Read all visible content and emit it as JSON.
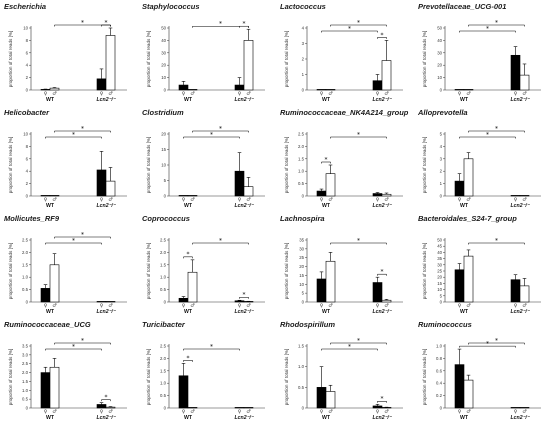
{
  "figure": {
    "sex_symbols": {
      "female": "♀",
      "male": "♂"
    },
    "colors": {
      "female_bar": "#000000",
      "male_bar": "#ffffff",
      "axis": "#333333"
    }
  },
  "chart_data": [
    {
      "type": "bar",
      "title": "Escherichia",
      "ylabel": "proportion of total reads [%]",
      "categories": [
        "WT",
        "Lcn2⁻/⁻"
      ],
      "yticks": [
        "0",
        "2",
        "4",
        "6",
        "8",
        "10"
      ],
      "ylim": [
        0,
        10
      ],
      "series": [
        {
          "name": "♀",
          "values": [
            0.1,
            1.8
          ],
          "errors": [
            0.05,
            1.6
          ]
        },
        {
          "name": "♂",
          "values": [
            0.3,
            8.8
          ],
          "errors": [
            0.1,
            1.6
          ]
        }
      ],
      "significance": [
        {
          "from": [
            0,
            1
          ],
          "to": [
            1,
            1
          ],
          "label": "*"
        },
        {
          "from": [
            1,
            0
          ],
          "to": [
            1,
            1
          ],
          "label": "*"
        }
      ]
    },
    {
      "type": "bar",
      "title": "Staphylococcus",
      "ylabel": "proportion of total reads [%]",
      "categories": [
        "WT",
        "Lcn2⁻/⁻"
      ],
      "yticks": [
        "0",
        "10",
        "20",
        "30",
        "40",
        "50"
      ],
      "ylim": [
        0,
        50
      ],
      "series": [
        {
          "name": "♀",
          "values": [
            4,
            4
          ],
          "errors": [
            3,
            6
          ]
        },
        {
          "name": "♂",
          "values": [
            0,
            40
          ],
          "errors": [
            0,
            9
          ]
        }
      ],
      "significance": [
        {
          "from": [
            0,
            1
          ],
          "to": [
            1,
            1
          ],
          "label": "*"
        },
        {
          "from": [
            1,
            0
          ],
          "to": [
            1,
            1
          ],
          "label": "*"
        }
      ]
    },
    {
      "type": "bar",
      "title": "Lactococcus",
      "ylabel": "proportion of total reads [%]",
      "categories": [
        "WT",
        "Lcn2⁻/⁻"
      ],
      "yticks": [
        "0",
        "1",
        "2",
        "3",
        "4"
      ],
      "ylim": [
        0,
        4
      ],
      "series": [
        {
          "name": "♀",
          "values": [
            0,
            0.6
          ],
          "errors": [
            0,
            0.4
          ]
        },
        {
          "name": "♂",
          "values": [
            0,
            1.9
          ],
          "errors": [
            0,
            1.3
          ]
        }
      ],
      "significance": [
        {
          "from": [
            0,
            0
          ],
          "to": [
            1,
            0
          ],
          "label": "*"
        },
        {
          "from": [
            0,
            1
          ],
          "to": [
            1,
            1
          ],
          "label": "*"
        },
        {
          "from": [
            1,
            0
          ],
          "to": [
            1,
            1
          ],
          "label": "*"
        }
      ]
    },
    {
      "type": "bar",
      "title": "Prevotellaceae_UCG-001",
      "ylabel": "proportion of total reads [%]",
      "categories": [
        "WT",
        "Lcn2⁻/⁻"
      ],
      "yticks": [
        "0",
        "10",
        "20",
        "30",
        "40",
        "50"
      ],
      "ylim": [
        0,
        50
      ],
      "series": [
        {
          "name": "♀",
          "values": [
            0,
            28
          ],
          "errors": [
            0,
            7
          ]
        },
        {
          "name": "♂",
          "values": [
            0,
            12
          ],
          "errors": [
            0,
            9
          ]
        }
      ],
      "significance": [
        {
          "from": [
            0,
            0
          ],
          "to": [
            1,
            0
          ],
          "label": "*"
        },
        {
          "from": [
            0,
            1
          ],
          "to": [
            1,
            1
          ],
          "label": "*"
        }
      ]
    },
    {
      "type": "bar",
      "title": "Helicobacter",
      "ylabel": "proportion of total reads [%]",
      "categories": [
        "WT",
        "Lcn2⁻/⁻"
      ],
      "yticks": [
        "0",
        "2",
        "4",
        "6",
        "8",
        "10"
      ],
      "ylim": [
        0,
        10
      ],
      "series": [
        {
          "name": "♀",
          "values": [
            0,
            4.2
          ],
          "errors": [
            0,
            3.0
          ]
        },
        {
          "name": "♂",
          "values": [
            0,
            2.4
          ],
          "errors": [
            0,
            2.2
          ]
        }
      ],
      "significance": [
        {
          "from": [
            0,
            0
          ],
          "to": [
            1,
            0
          ],
          "label": "*"
        },
        {
          "from": [
            0,
            1
          ],
          "to": [
            1,
            1
          ],
          "label": "*"
        }
      ]
    },
    {
      "type": "bar",
      "title": "Clostridium",
      "ylabel": "proportion of total reads [%]",
      "categories": [
        "WT",
        "Lcn2⁻/⁻"
      ],
      "yticks": [
        "0",
        "5",
        "10",
        "15",
        "20"
      ],
      "ylim": [
        0,
        20
      ],
      "series": [
        {
          "name": "♀",
          "values": [
            0,
            8
          ],
          "errors": [
            0,
            6
          ]
        },
        {
          "name": "♂",
          "values": [
            0,
            3
          ],
          "errors": [
            0,
            3
          ]
        }
      ],
      "significance": [
        {
          "from": [
            0,
            0
          ],
          "to": [
            1,
            0
          ],
          "label": "*"
        },
        {
          "from": [
            0,
            1
          ],
          "to": [
            1,
            1
          ],
          "label": "*"
        }
      ]
    },
    {
      "type": "bar",
      "title": "Ruminococcaceae_NK4A214_group",
      "ylabel": "proportion of total reads [%]",
      "categories": [
        "WT",
        "Lcn2⁻/⁻"
      ],
      "yticks": [
        "0",
        "0.5",
        "1.0",
        "1.5",
        "2.0",
        "2.5"
      ],
      "ylim": [
        0,
        2.5
      ],
      "series": [
        {
          "name": "♀",
          "values": [
            0.2,
            0.1
          ],
          "errors": [
            0.08,
            0.04
          ]
        },
        {
          "name": "♂",
          "values": [
            0.9,
            0.07
          ],
          "errors": [
            0.35,
            0.05
          ]
        }
      ],
      "significance": [
        {
          "from": [
            0,
            0
          ],
          "to": [
            0,
            1
          ],
          "label": "*"
        },
        {
          "from": [
            0,
            1
          ],
          "to": [
            1,
            1
          ],
          "label": "*"
        }
      ]
    },
    {
      "type": "bar",
      "title": "Alloprevotella",
      "ylabel": "proportion of total reads [%]",
      "categories": [
        "WT",
        "Lcn2⁻/⁻"
      ],
      "yticks": [
        "0",
        "1",
        "2",
        "3",
        "4",
        "5"
      ],
      "ylim": [
        0,
        5
      ],
      "series": [
        {
          "name": "♀",
          "values": [
            1.2,
            0
          ],
          "errors": [
            0.6,
            0
          ]
        },
        {
          "name": "♂",
          "values": [
            3.0,
            0
          ],
          "errors": [
            0.5,
            0
          ]
        }
      ],
      "significance": [
        {
          "from": [
            0,
            0
          ],
          "to": [
            1,
            0
          ],
          "label": "*"
        },
        {
          "from": [
            0,
            1
          ],
          "to": [
            1,
            1
          ],
          "label": "*"
        }
      ]
    },
    {
      "type": "bar",
      "title": "Mollicutes_RF9",
      "ylabel": "proportion of total reads [%]",
      "categories": [
        "WT",
        "Lcn2⁻/⁻"
      ],
      "yticks": [
        "0",
        "0.5",
        "1.0",
        "1.5",
        "2.0",
        "2.5"
      ],
      "ylim": [
        0,
        2.5
      ],
      "series": [
        {
          "name": "♀",
          "values": [
            0.55,
            0
          ],
          "errors": [
            0.15,
            0
          ]
        },
        {
          "name": "♂",
          "values": [
            1.5,
            0
          ],
          "errors": [
            0.45,
            0
          ]
        }
      ],
      "significance": [
        {
          "from": [
            0,
            0
          ],
          "to": [
            1,
            0
          ],
          "label": "*"
        },
        {
          "from": [
            0,
            1
          ],
          "to": [
            1,
            1
          ],
          "label": "*"
        }
      ]
    },
    {
      "type": "bar",
      "title": "Coprococcus",
      "ylabel": "proportion of total reads [%]",
      "categories": [
        "WT",
        "Lcn2⁻/⁻"
      ],
      "yticks": [
        "0",
        "0.5",
        "1.0",
        "1.5",
        "2.0",
        "2.5"
      ],
      "ylim": [
        0,
        2.5
      ],
      "series": [
        {
          "name": "♀",
          "values": [
            0.15,
            0.05
          ],
          "errors": [
            0.07,
            0.02
          ]
        },
        {
          "name": "♂",
          "values": [
            1.2,
            0.02
          ],
          "errors": [
            0.5,
            0.01
          ]
        }
      ],
      "significance": [
        {
          "from": [
            0,
            0
          ],
          "to": [
            0,
            1
          ],
          "label": "*"
        },
        {
          "from": [
            0,
            1
          ],
          "to": [
            1,
            1
          ],
          "label": "*"
        },
        {
          "from": [
            1,
            0
          ],
          "to": [
            1,
            1
          ],
          "label": "*"
        }
      ]
    },
    {
      "type": "bar",
      "title": "Lachnospira",
      "ylabel": "proportion of total reads [%]",
      "categories": [
        "WT",
        "Lcn2⁻/⁻"
      ],
      "yticks": [
        "0",
        "5",
        "10",
        "15",
        "20",
        "25",
        "30",
        "35"
      ],
      "ylim": [
        0,
        35
      ],
      "series": [
        {
          "name": "♀",
          "values": [
            13,
            11
          ],
          "errors": [
            4,
            3
          ]
        },
        {
          "name": "♂",
          "values": [
            23,
            1
          ],
          "errors": [
            5,
            0.5
          ]
        }
      ],
      "significance": [
        {
          "from": [
            0,
            1
          ],
          "to": [
            1,
            1
          ],
          "label": "*"
        },
        {
          "from": [
            1,
            0
          ],
          "to": [
            1,
            1
          ],
          "label": "*"
        }
      ]
    },
    {
      "type": "bar",
      "title": "Bacteroidales_S24-7_group",
      "ylabel": "proportion of total reads [%]",
      "categories": [
        "WT",
        "Lcn2⁻/⁻"
      ],
      "yticks": [
        "0",
        "5",
        "10",
        "15",
        "20",
        "25",
        "30",
        "35",
        "40",
        "45",
        "50"
      ],
      "ylim": [
        0,
        50
      ],
      "series": [
        {
          "name": "♀",
          "values": [
            26,
            18
          ],
          "errors": [
            5,
            4
          ]
        },
        {
          "name": "♂",
          "values": [
            37,
            13
          ],
          "errors": [
            5,
            6
          ]
        }
      ],
      "significance": [
        {
          "from": [
            0,
            1
          ],
          "to": [
            1,
            1
          ],
          "label": "*"
        }
      ]
    },
    {
      "type": "bar",
      "title": "Ruminococcaceae_UCG",
      "ylabel": "proportion of total reads [%]",
      "categories": [
        "WT",
        "Lcn2⁻/⁻"
      ],
      "yticks": [
        "0",
        "0.5",
        "1.0",
        "1.5",
        "2.0",
        "2.5",
        "3.0",
        "3.5"
      ],
      "ylim": [
        0,
        3.5
      ],
      "series": [
        {
          "name": "♀",
          "values": [
            2.0,
            0.2
          ],
          "errors": [
            0.3,
            0.1
          ]
        },
        {
          "name": "♂",
          "values": [
            2.3,
            0.05
          ],
          "errors": [
            0.5,
            0.03
          ]
        }
      ],
      "significance": [
        {
          "from": [
            0,
            0
          ],
          "to": [
            1,
            0
          ],
          "label": "*"
        },
        {
          "from": [
            0,
            1
          ],
          "to": [
            1,
            1
          ],
          "label": "*"
        },
        {
          "from": [
            1,
            0
          ],
          "to": [
            1,
            1
          ],
          "label": "*"
        }
      ]
    },
    {
      "type": "bar",
      "title": "Turicibacter",
      "ylabel": "proportion of total reads [%]",
      "categories": [
        "WT",
        "Lcn2⁻/⁻"
      ],
      "yticks": [
        "0",
        "0.5",
        "1.0",
        "1.5",
        "2.0",
        "2.5"
      ],
      "ylim": [
        0,
        2.5
      ],
      "series": [
        {
          "name": "♀",
          "values": [
            1.3,
            0
          ],
          "errors": [
            0.5,
            0
          ]
        },
        {
          "name": "♂",
          "values": [
            0,
            0
          ],
          "errors": [
            0,
            0
          ]
        }
      ],
      "significance": [
        {
          "from": [
            0,
            0
          ],
          "to": [
            0,
            1
          ],
          "label": "*"
        },
        {
          "from": [
            0,
            0
          ],
          "to": [
            1,
            0
          ],
          "label": "*"
        }
      ]
    },
    {
      "type": "bar",
      "title": "Rhodospirillum",
      "ylabel": "proportion of total reads [%]",
      "categories": [
        "WT",
        "Lcn2⁻/⁻"
      ],
      "yticks": [
        "0",
        "0.5",
        "1.0",
        "1.5"
      ],
      "ylim": [
        0,
        1.5
      ],
      "series": [
        {
          "name": "♀",
          "values": [
            0.5,
            0.05
          ],
          "errors": [
            0.5,
            0.04
          ]
        },
        {
          "name": "♂",
          "values": [
            0.4,
            0.01
          ],
          "errors": [
            0.15,
            0.01
          ]
        }
      ],
      "significance": [
        {
          "from": [
            0,
            0
          ],
          "to": [
            1,
            0
          ],
          "label": "*"
        },
        {
          "from": [
            0,
            1
          ],
          "to": [
            1,
            1
          ],
          "label": "*"
        },
        {
          "from": [
            1,
            0
          ],
          "to": [
            1,
            1
          ],
          "label": "*"
        }
      ]
    },
    {
      "type": "bar",
      "title": "Ruminococcus",
      "ylabel": "proportion of total reads [%]",
      "categories": [
        "WT",
        "Lcn2⁻/⁻"
      ],
      "yticks": [
        "0",
        "0.2",
        "0.4",
        "0.6",
        "0.8",
        "1.0"
      ],
      "ylim": [
        0,
        1.0
      ],
      "series": [
        {
          "name": "♀",
          "values": [
            0.7,
            0
          ],
          "errors": [
            0.25,
            0
          ]
        },
        {
          "name": "♂",
          "values": [
            0.45,
            0
          ],
          "errors": [
            0.08,
            0
          ]
        }
      ],
      "significance": [
        {
          "from": [
            0,
            0
          ],
          "to": [
            1,
            0
          ],
          "label": "*"
        },
        {
          "from": [
            0,
            1
          ],
          "to": [
            1,
            1
          ],
          "label": "*"
        }
      ]
    }
  ]
}
